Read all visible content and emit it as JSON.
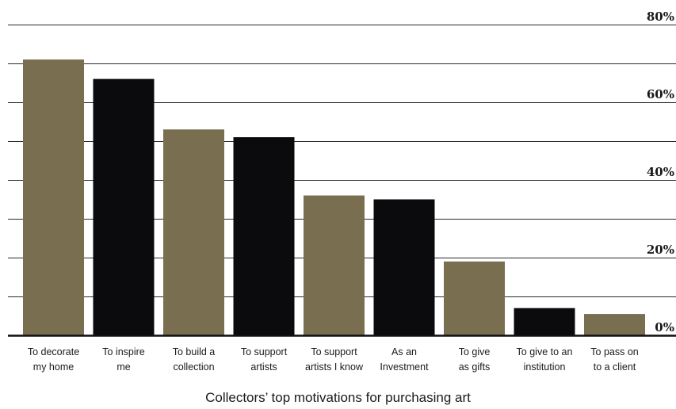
{
  "chart_data": {
    "type": "bar",
    "title": "Collectors’ top motivations for purchasing art",
    "categories": [
      [
        "To decorate",
        "my home"
      ],
      [
        "To inspire",
        "me"
      ],
      [
        "To build a",
        "collection"
      ],
      [
        "To support",
        "artists"
      ],
      [
        "To support",
        "artists I know"
      ],
      [
        "As an",
        "Investment"
      ],
      [
        "To give",
        "as gifts"
      ],
      [
        "To give to an",
        "institution"
      ],
      [
        "To pass on",
        "to a client"
      ]
    ],
    "values": [
      71,
      66,
      53,
      51,
      36,
      35,
      19,
      7,
      5.5
    ],
    "bar_colors": [
      "#7a6e50",
      "#0b0b0d",
      "#7a6e50",
      "#0b0b0d",
      "#7a6e50",
      "#0b0b0d",
      "#7a6e50",
      "#0b0b0d",
      "#7a6e50"
    ],
    "ylim": [
      0,
      80
    ],
    "ytick_labels": [
      {
        "value": 80,
        "label": "80%"
      },
      {
        "value": 60,
        "label": "60%"
      },
      {
        "value": 40,
        "label": "40%"
      },
      {
        "value": 20,
        "label": "20%"
      },
      {
        "value": 0,
        "label": "0%"
      }
    ],
    "gridlines": [
      10,
      20,
      30,
      40,
      50,
      60,
      70,
      80
    ],
    "grid": true,
    "legend": "none",
    "xlabel": "",
    "ylabel": ""
  }
}
